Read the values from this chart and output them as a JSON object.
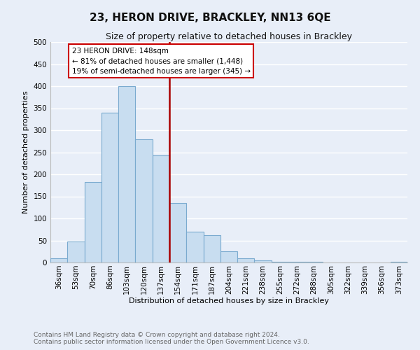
{
  "title": "23, HERON DRIVE, BRACKLEY, NN13 6QE",
  "subtitle": "Size of property relative to detached houses in Brackley",
  "xlabel": "Distribution of detached houses by size in Brackley",
  "ylabel": "Number of detached properties",
  "bar_color": "#c8ddf0",
  "bar_edge_color": "#7aaacf",
  "bins": [
    "36sqm",
    "53sqm",
    "70sqm",
    "86sqm",
    "103sqm",
    "120sqm",
    "137sqm",
    "154sqm",
    "171sqm",
    "187sqm",
    "204sqm",
    "221sqm",
    "238sqm",
    "255sqm",
    "272sqm",
    "288sqm",
    "305sqm",
    "322sqm",
    "339sqm",
    "356sqm",
    "373sqm"
  ],
  "values": [
    10,
    47,
    183,
    340,
    400,
    280,
    243,
    135,
    70,
    62,
    25,
    10,
    5,
    2,
    1,
    1,
    0,
    0,
    0,
    0,
    2
  ],
  "vline_color": "#aa0000",
  "annotation_title": "23 HERON DRIVE: 148sqm",
  "annotation_line1": "← 81% of detached houses are smaller (1,448)",
  "annotation_line2": "19% of semi-detached houses are larger (345) →",
  "annotation_box_facecolor": "#ffffff",
  "annotation_box_edgecolor": "#cc0000",
  "ylim": [
    0,
    500
  ],
  "yticks": [
    0,
    50,
    100,
    150,
    200,
    250,
    300,
    350,
    400,
    450,
    500
  ],
  "footnote1": "Contains HM Land Registry data © Crown copyright and database right 2024.",
  "footnote2": "Contains public sector information licensed under the Open Government Licence v3.0.",
  "bg_color": "#e8eef8",
  "grid_color": "#ffffff",
  "title_fontsize": 11,
  "subtitle_fontsize": 9,
  "axis_label_fontsize": 8,
  "tick_fontsize": 7.5,
  "footnote_fontsize": 6.5
}
